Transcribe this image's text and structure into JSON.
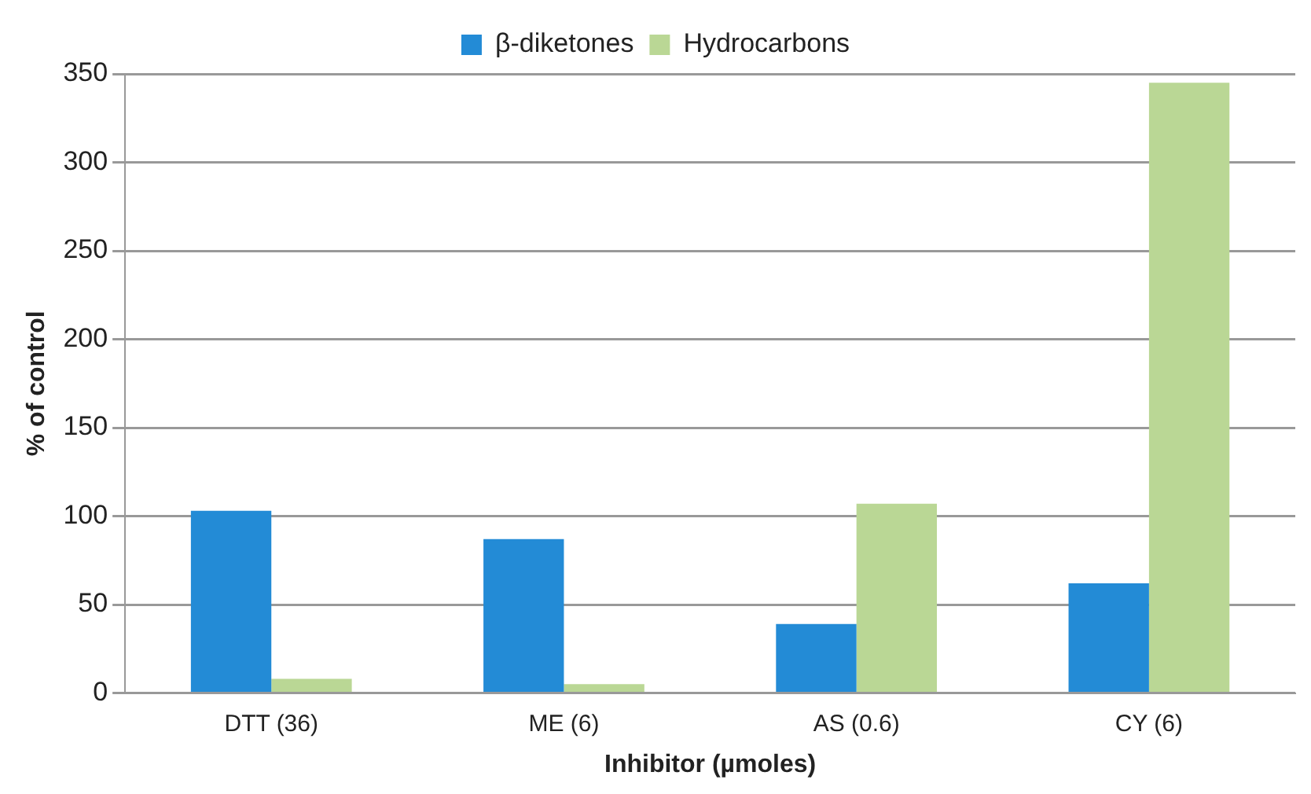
{
  "chart_data": {
    "type": "bar",
    "xlabel": "Inhibitor (µmoles)",
    "ylabel": "% of control",
    "categories": [
      "DTT (36)",
      "ME (6)",
      "AS (0.6)",
      "CY (6)"
    ],
    "series": [
      {
        "name": "β-diketones",
        "color": "#238bd6",
        "values": [
          103,
          87,
          39,
          62
        ]
      },
      {
        "name": "Hydrocarbons",
        "color": "#bad795",
        "values": [
          8,
          5,
          107,
          345
        ]
      }
    ],
    "ylim": [
      0,
      350
    ],
    "yticks": [
      0,
      50,
      100,
      150,
      200,
      250,
      300,
      350
    ],
    "grid": "y",
    "legend": "top"
  }
}
